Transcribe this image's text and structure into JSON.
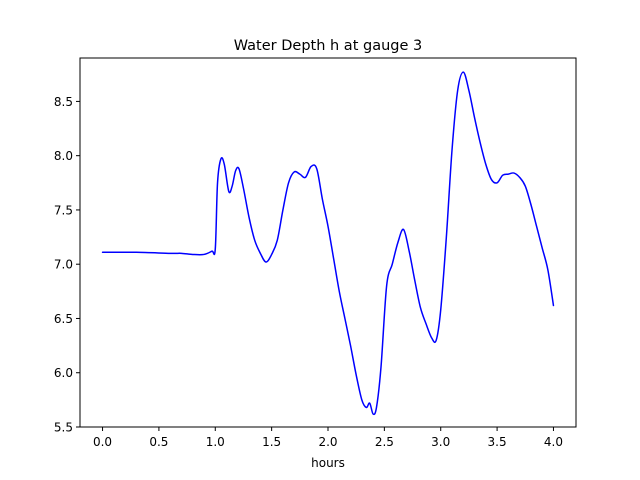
{
  "chart_data": {
    "type": "line",
    "title": "Water Depth h at gauge 3",
    "xlabel": "hours",
    "ylabel": "",
    "xlim": [
      -0.2,
      4.2
    ],
    "ylim": [
      5.5,
      8.9
    ],
    "xticks": [
      0.0,
      0.5,
      1.0,
      1.5,
      2.0,
      2.5,
      3.0,
      3.5,
      4.0
    ],
    "xtick_labels": [
      "0.0",
      "0.5",
      "1.0",
      "1.5",
      "2.0",
      "2.5",
      "3.0",
      "3.5",
      "4.0"
    ],
    "yticks": [
      5.5,
      6.0,
      6.5,
      7.0,
      7.5,
      8.0,
      8.5
    ],
    "ytick_labels": [
      "5.5",
      "6.0",
      "6.5",
      "7.0",
      "7.5",
      "8.0",
      "8.5"
    ],
    "grid": false,
    "series": [
      {
        "color": "#0000ff",
        "x": [
          0.0,
          0.3,
          0.6,
          0.7,
          0.8,
          0.9,
          0.97,
          1.0,
          1.02,
          1.05,
          1.08,
          1.12,
          1.15,
          1.18,
          1.21,
          1.25,
          1.3,
          1.35,
          1.4,
          1.45,
          1.5,
          1.55,
          1.6,
          1.65,
          1.7,
          1.75,
          1.8,
          1.85,
          1.9,
          1.95,
          2.0,
          2.05,
          2.1,
          2.15,
          2.2,
          2.25,
          2.3,
          2.34,
          2.37,
          2.4,
          2.43,
          2.47,
          2.52,
          2.57,
          2.62,
          2.67,
          2.72,
          2.77,
          2.82,
          2.87,
          2.92,
          2.96,
          3.0,
          3.05,
          3.1,
          3.15,
          3.2,
          3.25,
          3.3,
          3.35,
          3.4,
          3.45,
          3.5,
          3.55,
          3.6,
          3.65,
          3.7,
          3.75,
          3.8,
          3.85,
          3.9,
          3.95,
          4.0
        ],
        "y": [
          7.11,
          7.11,
          7.1,
          7.1,
          7.09,
          7.09,
          7.12,
          7.14,
          7.75,
          7.97,
          7.92,
          7.67,
          7.72,
          7.86,
          7.88,
          7.7,
          7.43,
          7.22,
          7.1,
          7.02,
          7.09,
          7.22,
          7.5,
          7.75,
          7.85,
          7.83,
          7.8,
          7.9,
          7.88,
          7.6,
          7.35,
          7.05,
          6.75,
          6.5,
          6.25,
          5.98,
          5.75,
          5.68,
          5.72,
          5.62,
          5.68,
          6.05,
          6.8,
          7.0,
          7.2,
          7.32,
          7.12,
          6.85,
          6.6,
          6.45,
          6.32,
          6.3,
          6.58,
          7.25,
          8.05,
          8.6,
          8.77,
          8.6,
          8.35,
          8.12,
          7.92,
          7.78,
          7.75,
          7.82,
          7.83,
          7.84,
          7.8,
          7.72,
          7.55,
          7.35,
          7.15,
          6.95,
          6.62
        ]
      }
    ]
  }
}
